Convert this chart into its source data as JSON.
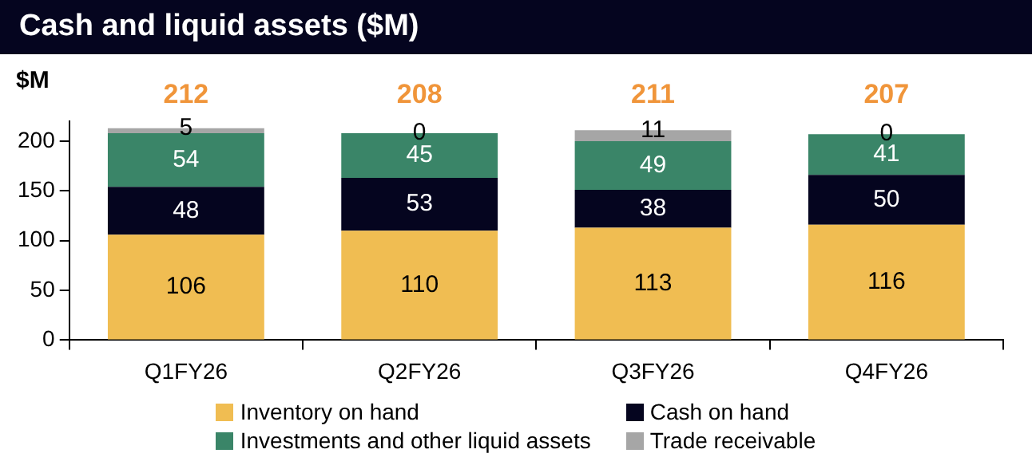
{
  "chart_data": {
    "type": "bar",
    "title": "Cash and liquid assets ($M)",
    "ylabel": "$M",
    "stacked": true,
    "categories": [
      "Q1FY26",
      "Q2FY26",
      "Q3FY26",
      "Q4FY26"
    ],
    "series": [
      {
        "name": "Inventory on hand",
        "color": "#f0bd52",
        "values": [
          106,
          110,
          113,
          116
        ]
      },
      {
        "name": "Cash on hand",
        "color": "#05051f",
        "values": [
          48,
          53,
          38,
          50
        ]
      },
      {
        "name": "Investments and other liquid assets",
        "color": "#3a8568",
        "values": [
          54,
          45,
          49,
          41
        ]
      },
      {
        "name": "Trade receivable",
        "color": "#a6a6a6",
        "values": [
          5,
          0,
          11,
          0
        ]
      }
    ],
    "totals": [
      "212",
      "208",
      "211",
      "207"
    ],
    "ylim": [
      0,
      220
    ],
    "yticks": [
      0,
      50,
      100,
      150,
      200
    ],
    "grid": false,
    "data_labels": true,
    "legend": "bottom"
  }
}
